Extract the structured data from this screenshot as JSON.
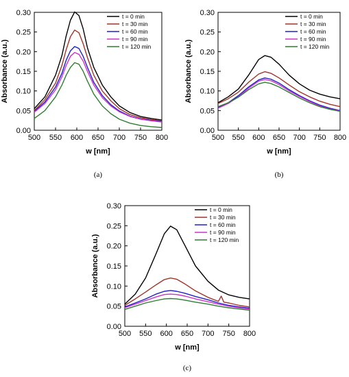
{
  "chart_data": [
    {
      "type": "line",
      "panel_label": "(a)",
      "xlabel": "w [nm]",
      "ylabel": "Absorbance (a.u.)",
      "xlim": [
        500,
        800
      ],
      "ylim": [
        0,
        0.3
      ],
      "xticks": [
        500,
        550,
        600,
        650,
        700,
        750,
        800
      ],
      "yticks": [
        0.0,
        0.05,
        0.1,
        0.15,
        0.2,
        0.25,
        0.3
      ],
      "legend_position": "top-right",
      "series": [
        {
          "name": "t = 0 min",
          "color": "#000000",
          "x": [
            500,
            525,
            550,
            565,
            575,
            585,
            595,
            605,
            615,
            625,
            640,
            660,
            680,
            700,
            725,
            750,
            775,
            800
          ],
          "y": [
            0.055,
            0.085,
            0.14,
            0.19,
            0.24,
            0.28,
            0.301,
            0.292,
            0.258,
            0.21,
            0.16,
            0.115,
            0.085,
            0.062,
            0.045,
            0.035,
            0.03,
            0.026
          ]
        },
        {
          "name": "t = 30 min",
          "color": "#a0342a",
          "x": [
            500,
            525,
            550,
            565,
            575,
            585,
            595,
            605,
            615,
            625,
            640,
            660,
            680,
            700,
            725,
            750,
            775,
            800
          ],
          "y": [
            0.05,
            0.078,
            0.12,
            0.165,
            0.205,
            0.238,
            0.255,
            0.248,
            0.22,
            0.185,
            0.14,
            0.1,
            0.075,
            0.055,
            0.04,
            0.032,
            0.027,
            0.024
          ]
        },
        {
          "name": "t =  60 min",
          "color": "#1f1fc8",
          "x": [
            500,
            525,
            550,
            565,
            575,
            585,
            595,
            605,
            615,
            625,
            640,
            660,
            680,
            700,
            725,
            750,
            775,
            800
          ],
          "y": [
            0.048,
            0.072,
            0.11,
            0.145,
            0.178,
            0.202,
            0.213,
            0.208,
            0.188,
            0.16,
            0.122,
            0.088,
            0.065,
            0.049,
            0.036,
            0.029,
            0.025,
            0.022
          ]
        },
        {
          "name": "t = 90 min",
          "color": "#cc33cc",
          "x": [
            500,
            525,
            550,
            565,
            575,
            585,
            595,
            605,
            615,
            625,
            640,
            660,
            680,
            700,
            725,
            750,
            775,
            800
          ],
          "y": [
            0.046,
            0.068,
            0.103,
            0.136,
            0.165,
            0.188,
            0.198,
            0.193,
            0.176,
            0.15,
            0.115,
            0.083,
            0.062,
            0.047,
            0.035,
            0.028,
            0.024,
            0.021
          ]
        },
        {
          "name": "t = 120 min",
          "color": "#2e7d32",
          "x": [
            500,
            525,
            550,
            565,
            575,
            585,
            595,
            605,
            615,
            625,
            640,
            660,
            680,
            700,
            725,
            750,
            775,
            800
          ],
          "y": [
            0.03,
            0.05,
            0.085,
            0.115,
            0.14,
            0.16,
            0.172,
            0.168,
            0.15,
            0.125,
            0.092,
            0.062,
            0.042,
            0.028,
            0.018,
            0.012,
            0.009,
            0.007
          ]
        }
      ]
    },
    {
      "type": "line",
      "panel_label": "(b)",
      "xlabel": "w [nm]",
      "ylabel": "Absorbance (a.u.)",
      "xlim": [
        500,
        800
      ],
      "ylim": [
        0,
        0.3
      ],
      "xticks": [
        500,
        550,
        600,
        650,
        700,
        750,
        800
      ],
      "yticks": [
        0.0,
        0.05,
        0.1,
        0.15,
        0.2,
        0.25,
        0.3
      ],
      "legend_position": "top-right",
      "series": [
        {
          "name": "t = 0 min",
          "color": "#000000",
          "x": [
            500,
            525,
            550,
            575,
            600,
            615,
            630,
            650,
            675,
            700,
            725,
            750,
            775,
            800
          ],
          "y": [
            0.07,
            0.085,
            0.105,
            0.14,
            0.18,
            0.19,
            0.186,
            0.168,
            0.14,
            0.118,
            0.102,
            0.092,
            0.085,
            0.08
          ]
        },
        {
          "name": "t = 30 min",
          "color": "#a0342a",
          "x": [
            500,
            525,
            550,
            575,
            600,
            615,
            630,
            650,
            675,
            700,
            725,
            750,
            775,
            800
          ],
          "y": [
            0.068,
            0.08,
            0.097,
            0.122,
            0.143,
            0.149,
            0.145,
            0.133,
            0.115,
            0.098,
            0.085,
            0.074,
            0.066,
            0.06
          ]
        },
        {
          "name": "t =  60 min",
          "color": "#1f1fc8",
          "x": [
            500,
            525,
            550,
            575,
            600,
            615,
            630,
            650,
            675,
            700,
            725,
            750,
            775,
            800
          ],
          "y": [
            0.058,
            0.07,
            0.088,
            0.11,
            0.128,
            0.133,
            0.13,
            0.12,
            0.103,
            0.088,
            0.075,
            0.064,
            0.056,
            0.05
          ]
        },
        {
          "name": "t = 90 min",
          "color": "#cc33cc",
          "x": [
            500,
            525,
            550,
            575,
            600,
            615,
            630,
            650,
            675,
            700,
            725,
            750,
            775,
            800
          ],
          "y": [
            0.056,
            0.068,
            0.085,
            0.107,
            0.125,
            0.129,
            0.126,
            0.116,
            0.1,
            0.086,
            0.073,
            0.062,
            0.054,
            0.049
          ]
        },
        {
          "name": "t = 120 min",
          "color": "#2e7d32",
          "x": [
            500,
            525,
            550,
            575,
            600,
            615,
            630,
            650,
            675,
            700,
            725,
            750,
            775,
            800
          ],
          "y": [
            0.06,
            0.07,
            0.084,
            0.103,
            0.118,
            0.122,
            0.119,
            0.11,
            0.096,
            0.082,
            0.07,
            0.06,
            0.053,
            0.048
          ]
        }
      ]
    },
    {
      "type": "line",
      "panel_label": "(c)",
      "xlabel": "w [nm]",
      "ylabel": "Absorbance (a.u.)",
      "xlim": [
        500,
        800
      ],
      "ylim": [
        0,
        0.3
      ],
      "xticks": [
        500,
        550,
        600,
        650,
        700,
        750,
        800
      ],
      "yticks": [
        0.0,
        0.05,
        0.1,
        0.15,
        0.2,
        0.25,
        0.3
      ],
      "legend_position": "top-right",
      "series": [
        {
          "name": "t = 0 min",
          "color": "#000000",
          "x": [
            500,
            525,
            550,
            575,
            595,
            610,
            625,
            645,
            670,
            700,
            725,
            750,
            775,
            800
          ],
          "y": [
            0.055,
            0.08,
            0.12,
            0.18,
            0.23,
            0.249,
            0.24,
            0.2,
            0.15,
            0.112,
            0.09,
            0.078,
            0.072,
            0.068
          ]
        },
        {
          "name": "t = 30 min",
          "color": "#a0342a",
          "x": [
            500,
            525,
            550,
            575,
            595,
            610,
            625,
            645,
            670,
            700,
            725,
            732,
            738,
            750,
            775,
            800
          ],
          "y": [
            0.052,
            0.068,
            0.085,
            0.103,
            0.116,
            0.12,
            0.117,
            0.105,
            0.088,
            0.072,
            0.062,
            0.075,
            0.06,
            0.058,
            0.052,
            0.048
          ]
        },
        {
          "name": "t =  60 min",
          "color": "#1f1fc8",
          "x": [
            500,
            525,
            550,
            575,
            595,
            610,
            625,
            645,
            670,
            700,
            725,
            750,
            775,
            800
          ],
          "y": [
            0.048,
            0.058,
            0.068,
            0.08,
            0.087,
            0.089,
            0.087,
            0.082,
            0.074,
            0.066,
            0.058,
            0.052,
            0.048,
            0.045
          ]
        },
        {
          "name": "t = 90 min",
          "color": "#cc33cc",
          "x": [
            500,
            525,
            550,
            575,
            595,
            610,
            625,
            645,
            670,
            700,
            725,
            750,
            775,
            800
          ],
          "y": [
            0.046,
            0.055,
            0.064,
            0.073,
            0.079,
            0.08,
            0.079,
            0.075,
            0.068,
            0.061,
            0.055,
            0.05,
            0.046,
            0.043
          ]
        },
        {
          "name": "t = 120 min",
          "color": "#2e7d32",
          "x": [
            500,
            525,
            550,
            575,
            595,
            610,
            625,
            645,
            670,
            700,
            725,
            750,
            775,
            800
          ],
          "y": [
            0.042,
            0.05,
            0.058,
            0.064,
            0.068,
            0.069,
            0.068,
            0.065,
            0.06,
            0.055,
            0.05,
            0.046,
            0.043,
            0.04
          ]
        }
      ]
    }
  ]
}
